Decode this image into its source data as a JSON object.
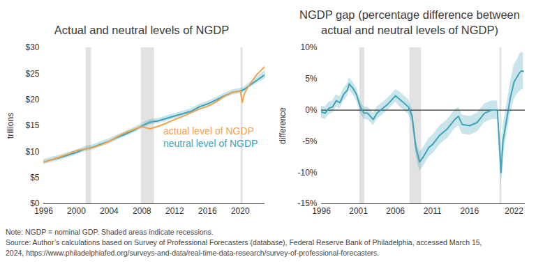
{
  "chart_data": [
    {
      "type": "line",
      "title": "Actual and neutral levels of NGDP",
      "y_label": "trillions",
      "xlim": [
        1996,
        2023
      ],
      "xticks": [
        1996,
        2000,
        2004,
        2008,
        2012,
        2016,
        2020
      ],
      "ylim": [
        0,
        30
      ],
      "yticks": [
        {
          "value": 0,
          "label": "$0"
        },
        {
          "value": 5,
          "label": "$5"
        },
        {
          "value": 10,
          "label": "$10"
        },
        {
          "value": 15,
          "label": "$15"
        },
        {
          "value": 20,
          "label": "$20"
        },
        {
          "value": 25,
          "label": "$25"
        },
        {
          "value": 30,
          "label": "$30"
        }
      ],
      "grid": false,
      "recessions": [
        {
          "start": 2001.17,
          "end": 2001.83
        },
        {
          "start": 2007.92,
          "end": 2009.5
        },
        {
          "start": 2020.08,
          "end": 2020.33
        }
      ],
      "x": [
        1996,
        1997,
        1998,
        1999,
        2000,
        2001,
        2002,
        2003,
        2004,
        2005,
        2006,
        2007,
        2008,
        2009,
        2010,
        2011,
        2012,
        2013,
        2014,
        2015,
        2016,
        2017,
        2018,
        2019,
        2020,
        2020.25,
        2020.5,
        2021,
        2022,
        2023
      ],
      "series": [
        {
          "name": "actual level of NGDP",
          "color": "#f4a24c",
          "values": [
            8.0,
            8.5,
            9.0,
            9.6,
            10.2,
            10.5,
            10.8,
            11.3,
            12.0,
            12.9,
            13.7,
            14.3,
            14.8,
            14.4,
            14.9,
            15.5,
            16.2,
            16.8,
            17.5,
            18.2,
            18.7,
            19.5,
            20.6,
            21.4,
            21.7,
            19.5,
            21.2,
            22.6,
            24.8,
            26.4
          ]
        },
        {
          "name": "neutral level of NGDP",
          "color": "#3ea3b6",
          "values": [
            8.02,
            8.47,
            8.87,
            9.37,
            9.86,
            10.5,
            10.85,
            11.47,
            12.0,
            12.77,
            13.39,
            14.12,
            14.95,
            15.7,
            15.94,
            16.4,
            16.88,
            17.32,
            17.77,
            18.63,
            19.18,
            19.9,
            20.7,
            21.4,
            21.7,
            21.8,
            22.0,
            22.6,
            23.7,
            24.8
          ],
          "band_lower": [
            7.52,
            7.97,
            8.37,
            8.87,
            9.36,
            10.0,
            10.35,
            10.97,
            11.5,
            12.27,
            12.89,
            13.62,
            14.45,
            15.2,
            15.44,
            15.9,
            16.38,
            16.82,
            17.27,
            18.13,
            18.68,
            19.4,
            20.2,
            20.9,
            21.2,
            21.3,
            21.5,
            22.1,
            23.1,
            24.0
          ],
          "band_upper": [
            8.52,
            8.97,
            9.37,
            9.87,
            10.36,
            11.0,
            11.35,
            11.97,
            12.5,
            13.27,
            13.89,
            14.62,
            15.45,
            16.2,
            16.44,
            16.9,
            17.38,
            17.82,
            18.27,
            19.13,
            19.68,
            20.4,
            21.2,
            21.9,
            22.2,
            22.3,
            22.5,
            23.1,
            24.3,
            25.6
          ]
        }
      ]
    },
    {
      "type": "line",
      "title": "NGDP gap (percentage difference between actual and neutral levels of NGDP)",
      "y_label": "difference",
      "xlim": [
        1996,
        2023.5
      ],
      "xticks": [
        1996,
        2001,
        2006,
        2011,
        2016,
        2022
      ],
      "ylim": [
        -15,
        10
      ],
      "yticks": [
        {
          "value": -15,
          "label": "-15%"
        },
        {
          "value": -10,
          "label": "-10%"
        },
        {
          "value": -5,
          "label": "-5%"
        },
        {
          "value": 0,
          "label": "0%"
        },
        {
          "value": 5,
          "label": "5%"
        },
        {
          "value": 10,
          "label": "10%"
        }
      ],
      "grid": false,
      "recessions": [
        {
          "start": 2001.17,
          "end": 2001.83
        },
        {
          "start": 2007.92,
          "end": 2009.5
        },
        {
          "start": 2020.08,
          "end": 2020.33
        }
      ],
      "x": [
        1996,
        1996.5,
        1997,
        1997.5,
        1998,
        1998.5,
        1999,
        1999.5,
        1999.75,
        2000.25,
        2000.75,
        2001.25,
        2001.75,
        2002.25,
        2003,
        2003.5,
        2004,
        2005,
        2006,
        2006.5,
        2007,
        2007.75,
        2008.25,
        2008.75,
        2009.25,
        2009.75,
        2010.5,
        2011,
        2012,
        2013,
        2014,
        2014.5,
        2015,
        2016,
        2017,
        2018,
        2019,
        2019.75,
        2020.25,
        2020.5,
        2021,
        2021.5,
        2022,
        2022.5,
        2022.75,
        2023,
        2023.25
      ],
      "series": [
        {
          "color": "#3ea3b6",
          "values": [
            -0.3,
            -0.5,
            0.3,
            0.5,
            1.5,
            1.2,
            2.5,
            3.2,
            4.2,
            3.5,
            2.5,
            0.5,
            -0.5,
            -0.5,
            -1.5,
            -0.5,
            0,
            1.0,
            2.3,
            1.8,
            1.3,
            0.5,
            -1,
            -6,
            -8.3,
            -7.5,
            -6,
            -5.5,
            -4,
            -3,
            -1.5,
            -1.0,
            -2.3,
            -2.5,
            -2.0,
            -0.5,
            0,
            0,
            -10,
            -5,
            -1.5,
            2,
            4.5,
            5.5,
            6.0,
            6.3,
            6.2
          ],
          "band_lower": [
            -1.3,
            -1.5,
            -0.7,
            -0.5,
            0.5,
            0.2,
            1.5,
            2.2,
            3.2,
            2.5,
            1.5,
            -0.5,
            -1.5,
            -1.5,
            -2.5,
            -1.5,
            -1,
            0,
            1.3,
            0.6,
            0.1,
            -0.7,
            -2.2,
            -7.2,
            -9.8,
            -9,
            -7.5,
            -7,
            -5.5,
            -4.5,
            -3,
            -2.5,
            -3.8,
            -4,
            -3.5,
            -2,
            -1.5,
            -1.5,
            -12.5,
            -7.5,
            -4,
            -0.5,
            1.7,
            2.7,
            3,
            3.3,
            3.2
          ],
          "band_upper": [
            0.7,
            0.5,
            1.3,
            1.5,
            2.5,
            2.2,
            3.5,
            4.2,
            5.2,
            4.5,
            3.5,
            1.5,
            0.5,
            0.5,
            -0.5,
            0.5,
            1,
            2,
            3.3,
            3,
            2.5,
            1.7,
            0.2,
            -4.8,
            -6.8,
            -6,
            -4.5,
            -4,
            -2.5,
            -1.5,
            0,
            0.5,
            -0.8,
            -1,
            -0.5,
            1,
            1.5,
            1.5,
            -7.5,
            -2.5,
            1,
            4.5,
            7.3,
            8.3,
            9,
            9.3,
            9.2
          ]
        }
      ]
    }
  ],
  "notes": [
    "Note: NGDP = nominal GDP. Shaded areas indicate recessions.",
    "Source: Author’s calculations based on Survey of Professional Forecasters (database), Federal Reserve Bank of Philadelphia, accessed March 15,",
    "2024, https://www.philadelphiafed.org/surveys-and-data/real-time-data-research/survey-of-professional-forecasters."
  ]
}
